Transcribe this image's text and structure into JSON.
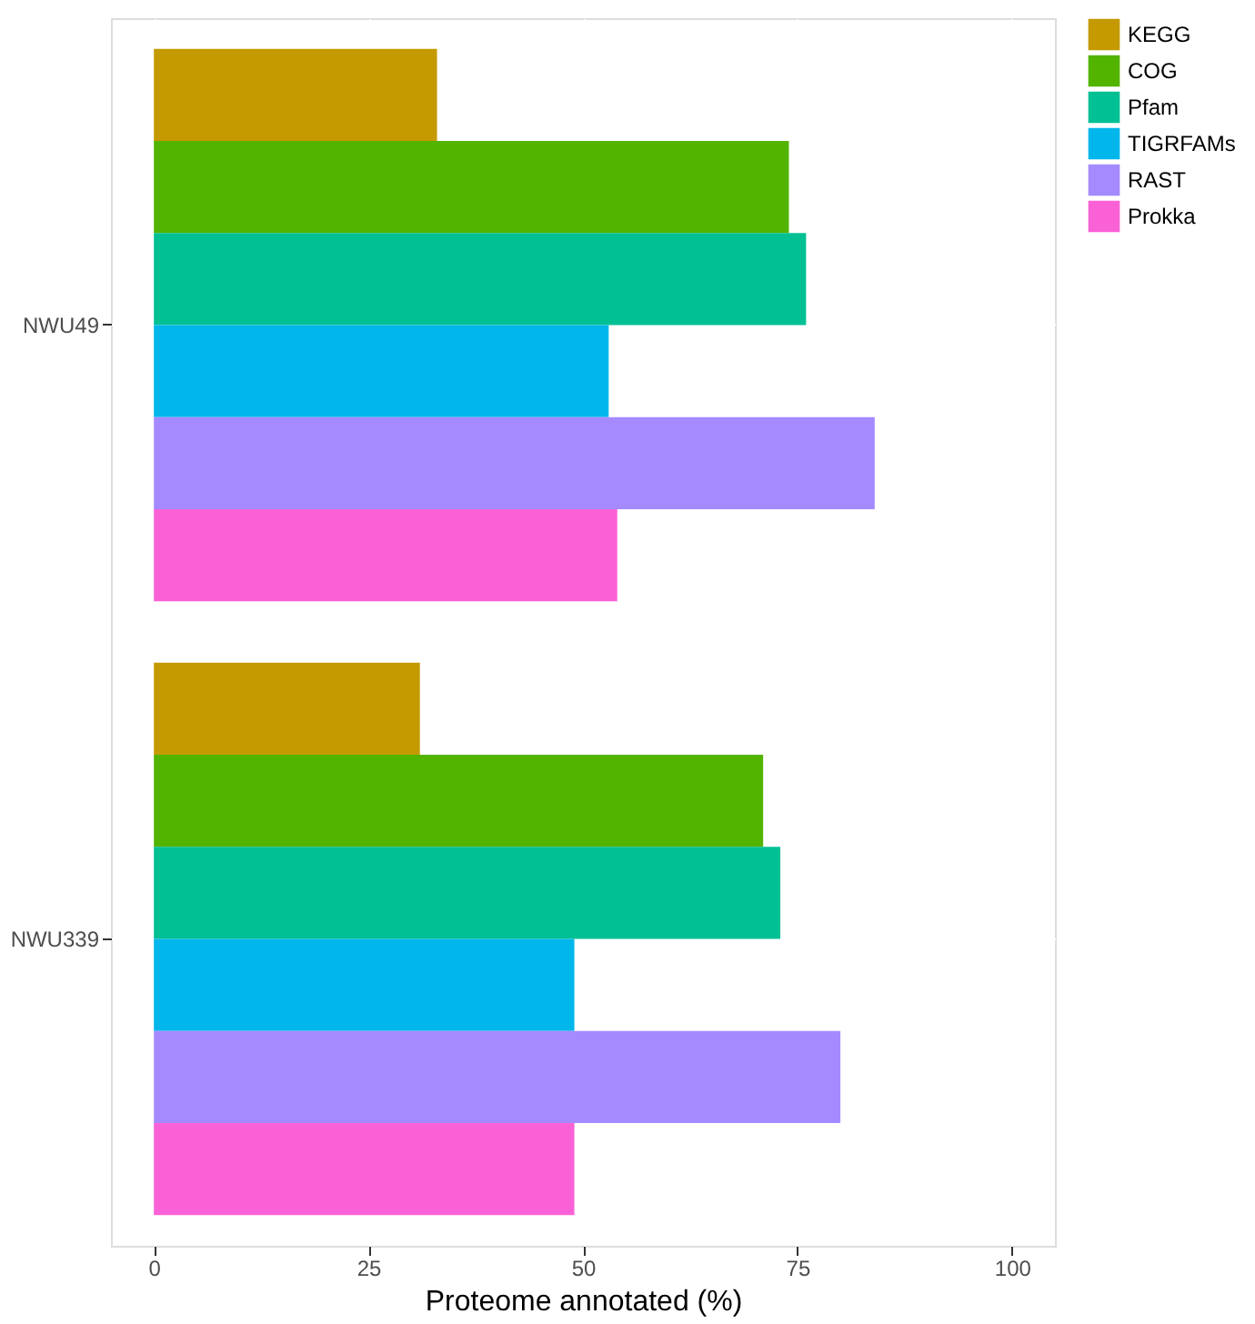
{
  "chart_data": {
    "type": "bar",
    "orientation": "horizontal",
    "categories": [
      "NWU49",
      "NWU339"
    ],
    "series": [
      {
        "name": "KEGG",
        "color": "#c49a00",
        "values": [
          33,
          31
        ]
      },
      {
        "name": "COG",
        "color": "#53b400",
        "values": [
          74,
          71
        ]
      },
      {
        "name": "Pfam",
        "color": "#00c094",
        "values": [
          76,
          73
        ]
      },
      {
        "name": "TIGRFAMs",
        "color": "#00b6eb",
        "values": [
          53,
          49
        ]
      },
      {
        "name": "RAST",
        "color": "#a58aff",
        "values": [
          84,
          80
        ]
      },
      {
        "name": "Prokka",
        "color": "#fb61d7",
        "values": [
          54,
          49
        ]
      }
    ],
    "xlabel": "Proteome annotated (%)",
    "xlim": [
      -5,
      105
    ],
    "xticks": [
      0,
      25,
      50,
      75,
      100
    ],
    "grid": true,
    "legend": "right"
  }
}
